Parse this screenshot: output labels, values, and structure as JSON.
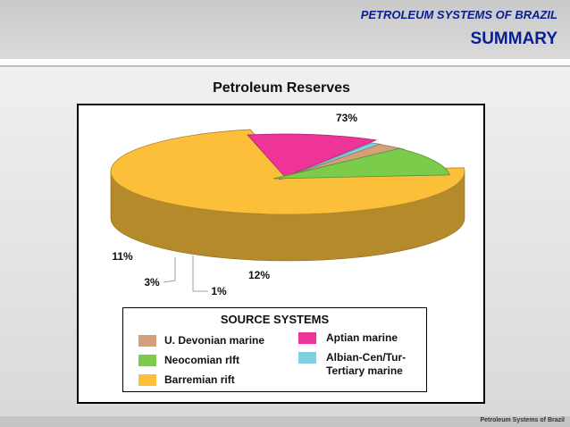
{
  "header": {
    "subtitle": "PETROLEUM SYSTEMS OF BRAZIL",
    "title": "SUMMARY"
  },
  "chart_data": {
    "type": "pie",
    "title": "Petroleum Reserves",
    "style": "3d-exploded",
    "legend_title": "SOURCE SYSTEMS",
    "legend_placement": "bottom",
    "slices": [
      {
        "name": "Barremian rift",
        "value": 73,
        "label": "73%",
        "color": "#fbbf3a"
      },
      {
        "name": "Aptian marine",
        "value": 12,
        "label": "12%",
        "color": "#ee3399"
      },
      {
        "name": "Albian-Cen/Tur-Tertiary marine",
        "value": 1,
        "label": "1%",
        "color": "#7fd0e0"
      },
      {
        "name": "U. Devonian marine",
        "value": 3,
        "label": "3%",
        "color": "#d4a07a"
      },
      {
        "name": "Neocomian rIft",
        "value": 11,
        "label": "11%",
        "color": "#7ccc4c"
      }
    ]
  },
  "legend": {
    "col1": [
      "U. Devonian marine",
      "Neocomian rIft",
      "Barremian rift"
    ],
    "col2_line1": "Aptian marine",
    "col2_line2a": "Albian-Cen/Tur-",
    "col2_line2b": "Tertiary marine"
  },
  "footer": {
    "text": "Petroleum Systems of Brazil"
  }
}
